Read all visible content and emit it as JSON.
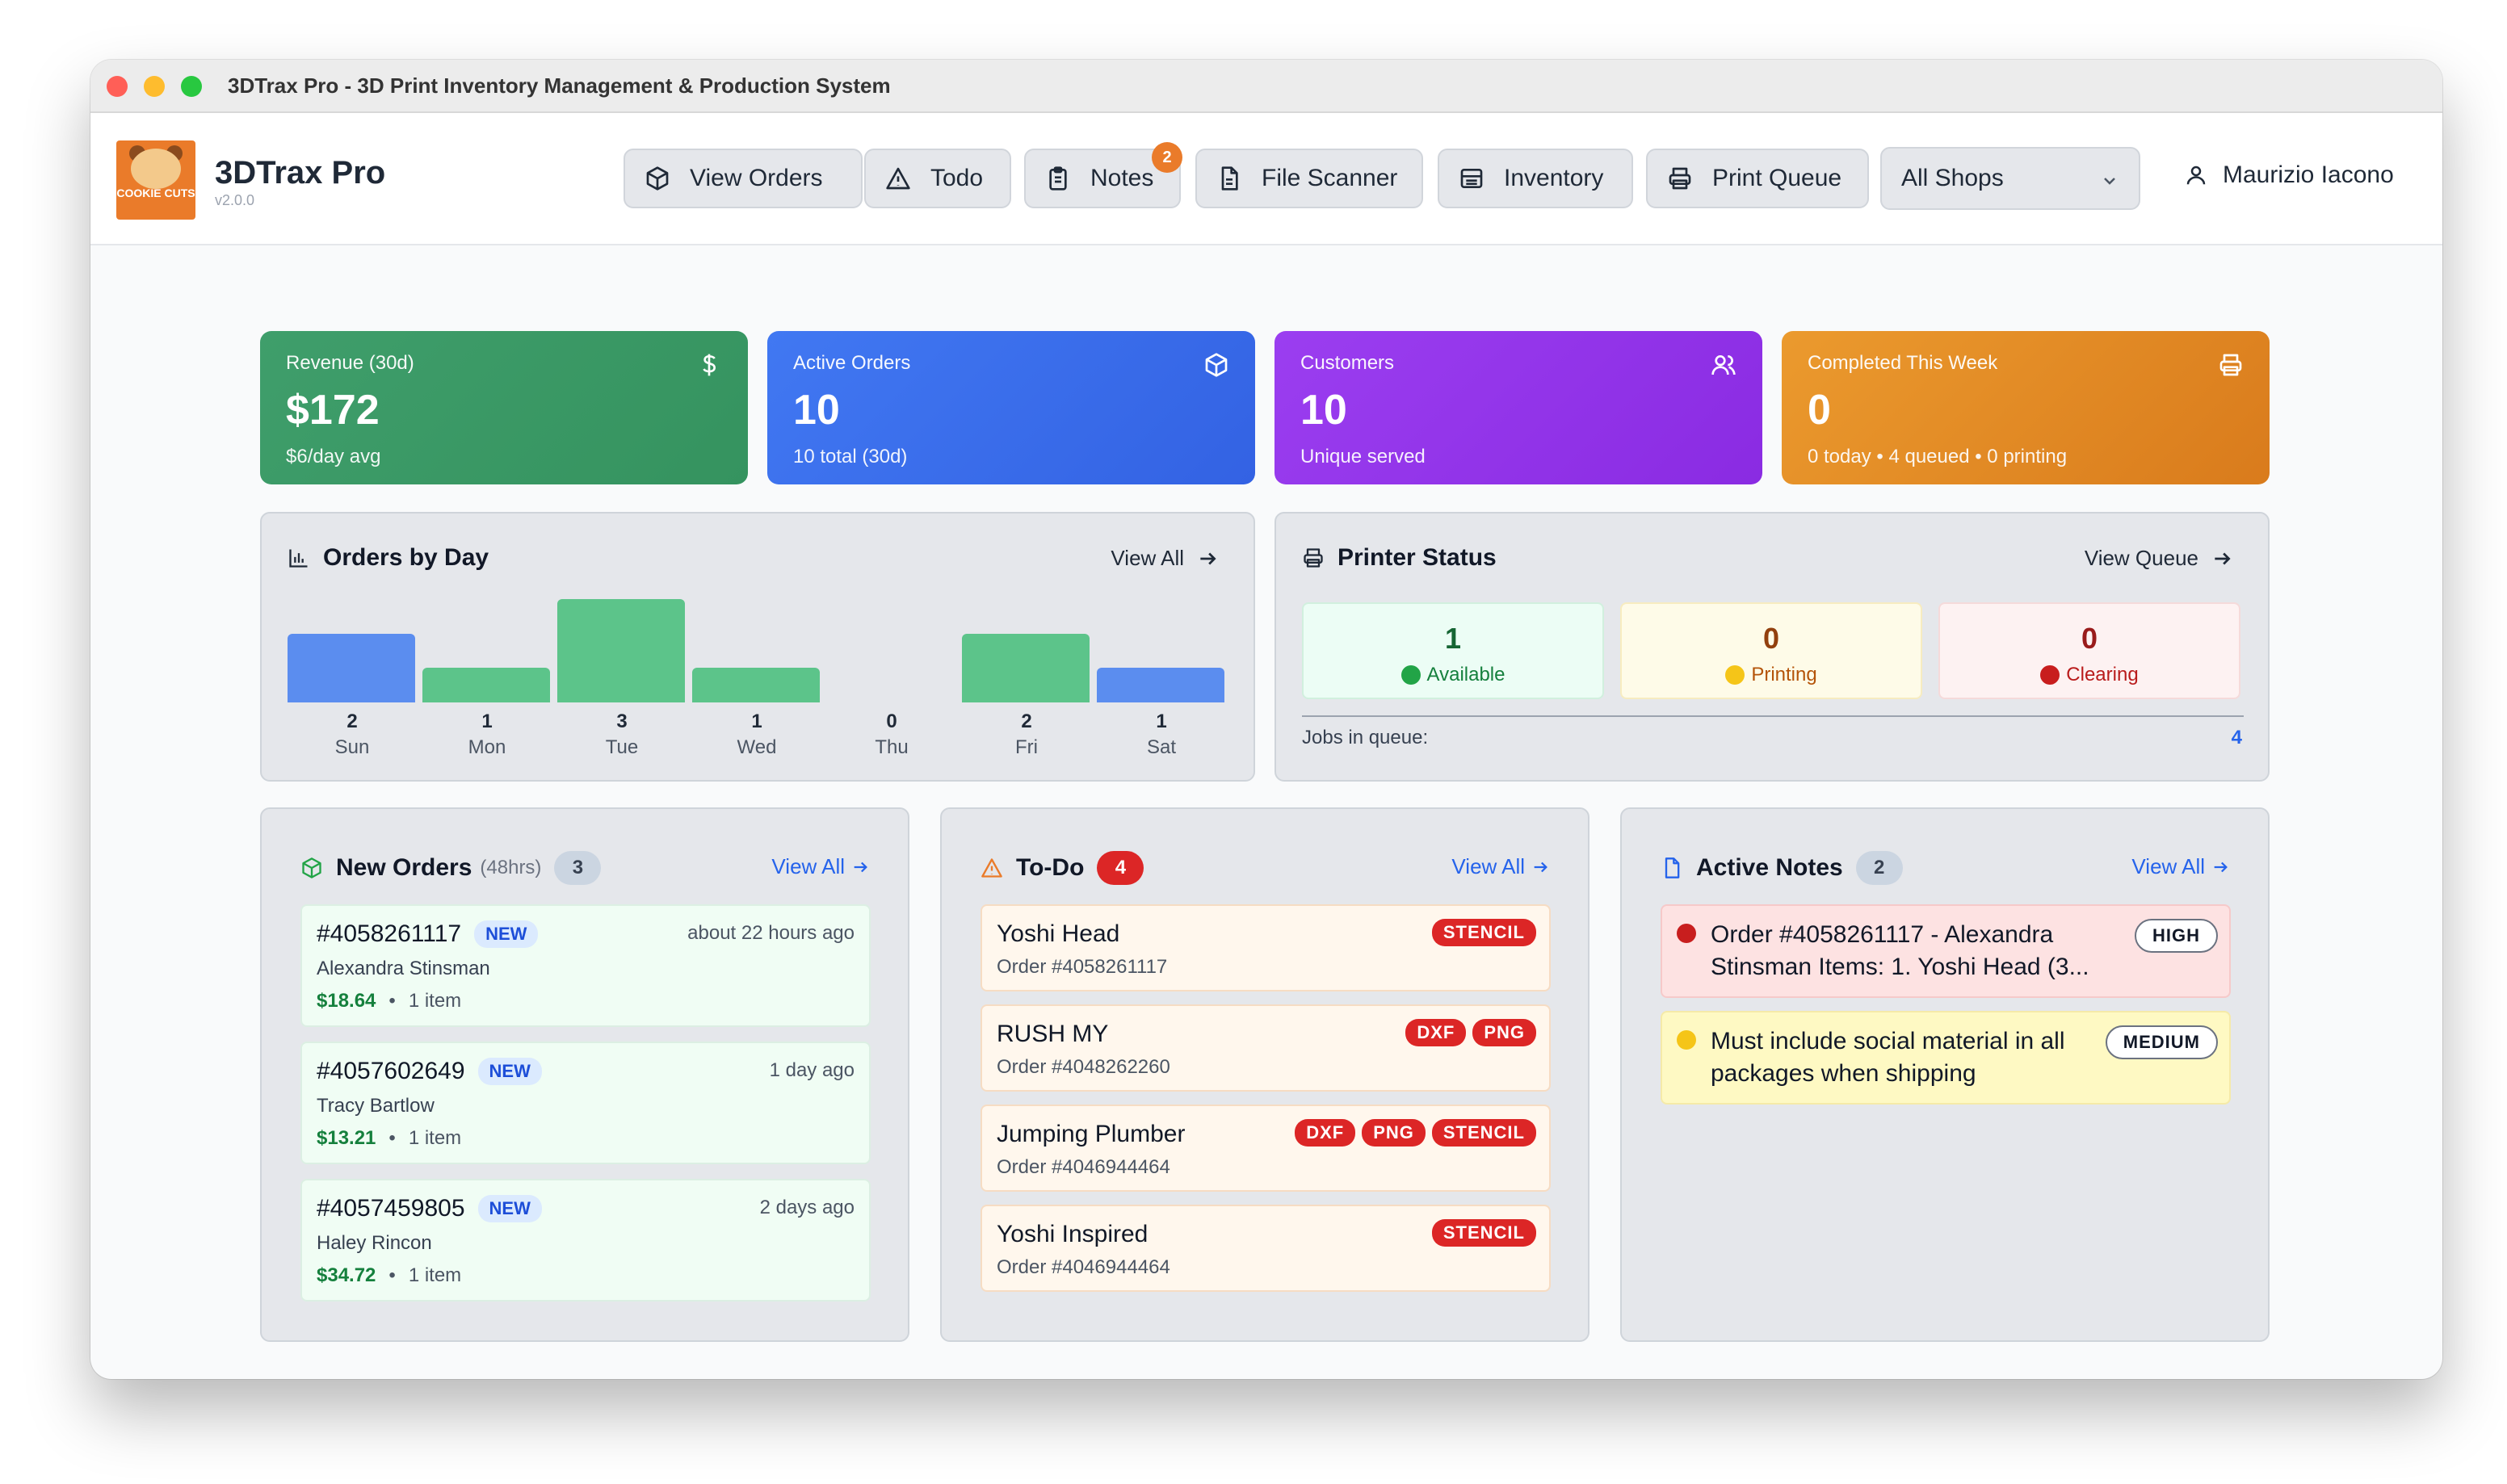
{
  "window": {
    "title": "3DTrax Pro - 3D Print Inventory Management & Production System"
  },
  "brand": {
    "name": "3DTrax Pro",
    "version": "v2.0.0",
    "logo_text": "COOKIE CUTS"
  },
  "nav": {
    "view_orders": "View Orders",
    "todo": "Todo",
    "notes": "Notes",
    "notes_badge": "2",
    "file_scanner": "File Scanner",
    "inventory": "Inventory",
    "print_queue": "Print Queue"
  },
  "shop_select": {
    "value": "All Shops"
  },
  "user": {
    "name": "Maurizio Iacono"
  },
  "stats": [
    {
      "label": "Revenue (30d)",
      "value": "$172",
      "sub": "$6/day avg",
      "color": "#3f9e6b",
      "icon": "dollar-icon"
    },
    {
      "label": "Active Orders",
      "value": "10",
      "sub": "10 total (30d)",
      "color": "#3b6ff0",
      "icon": "box-icon"
    },
    {
      "label": "Customers",
      "value": "10",
      "sub": "Unique served",
      "color": "#9333ea",
      "icon": "users-icon"
    },
    {
      "label": "Completed This Week",
      "value": "0",
      "sub": "0 today • 4 queued • 0 printing",
      "color": "#e08a24",
      "icon": "printer-icon"
    }
  ],
  "orders_by_day": {
    "title": "Orders by Day",
    "view_all": "View All",
    "chart_data": {
      "type": "bar",
      "categories": [
        "Sun",
        "Mon",
        "Tue",
        "Wed",
        "Thu",
        "Fri",
        "Sat"
      ],
      "values": [
        2,
        1,
        3,
        1,
        0,
        2,
        1
      ],
      "colors": [
        "#5b8def",
        "#5cc48a",
        "#5cc48a",
        "#5cc48a",
        "#5cc48a",
        "#5cc48a",
        "#5b8def"
      ],
      "ylim": [
        0,
        3
      ]
    },
    "value_labels": [
      "2",
      "1",
      "3",
      "1",
      "0",
      "2",
      "1"
    ]
  },
  "printer_status": {
    "title": "Printer Status",
    "view_queue": "View Queue",
    "available": {
      "count": "1",
      "label": "Available"
    },
    "printing": {
      "count": "0",
      "label": "Printing"
    },
    "clearing": {
      "count": "0",
      "label": "Clearing"
    },
    "jobs_label": "Jobs in queue:",
    "jobs_count": "4"
  },
  "new_orders": {
    "title": "New Orders",
    "window": "(48hrs)",
    "count": "3",
    "view_all": "View All",
    "items": [
      {
        "id": "#4058261117",
        "badge": "NEW",
        "time": "about 22 hours ago",
        "customer": "Alexandra Stinsman",
        "price": "$18.64",
        "sep": "•",
        "qty": "1 item"
      },
      {
        "id": "#4057602649",
        "badge": "NEW",
        "time": "1 day ago",
        "customer": "Tracy Bartlow",
        "price": "$13.21",
        "sep": "•",
        "qty": "1 item"
      },
      {
        "id": "#4057459805",
        "badge": "NEW",
        "time": "2 days ago",
        "customer": "Haley Rincon",
        "price": "$34.72",
        "sep": "•",
        "qty": "1 item"
      }
    ]
  },
  "todo": {
    "title": "To-Do",
    "count": "4",
    "view_all": "View All",
    "items": [
      {
        "name": "Yoshi Head",
        "order": "Order #4058261117",
        "tags": [
          "STENCIL"
        ]
      },
      {
        "name": "RUSH MY",
        "order": "Order #4048262260",
        "tags": [
          "DXF",
          "PNG"
        ]
      },
      {
        "name": "Jumping Plumber",
        "order": "Order #4046944464",
        "tags": [
          "DXF",
          "PNG",
          "STENCIL"
        ]
      },
      {
        "name": "Yoshi Inspired",
        "order": "Order #4046944464",
        "tags": [
          "STENCIL"
        ]
      }
    ]
  },
  "notes": {
    "title": "Active Notes",
    "count": "2",
    "view_all": "View All",
    "items": [
      {
        "text": "Order #4058261117 - Alexandra Stinsman Items: 1. Yoshi Head (3...",
        "priority": "HIGH",
        "bg": "#fde2e2",
        "dot": "#dc2626"
      },
      {
        "text": "Must include social material in all packages when shipping",
        "priority": "MEDIUM",
        "bg": "#fef9c3",
        "dot": "#facc15"
      }
    ]
  }
}
